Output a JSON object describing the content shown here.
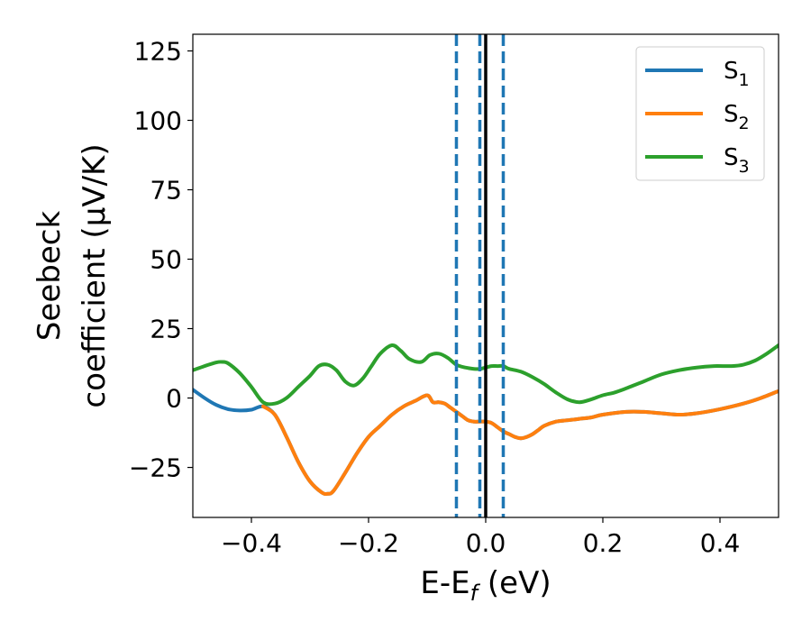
{
  "chart_data": {
    "type": "line",
    "xlabel": {
      "base": "E-E",
      "sub": "f",
      "rest": " (eV)"
    },
    "ylabel": {
      "line1": "Seebeck",
      "line2": "coefficient  (μV/K)"
    },
    "xlim": [
      -0.5,
      0.5
    ],
    "ylim": [
      -43,
      131
    ],
    "xticks": [
      -0.4,
      -0.2,
      0.0,
      0.2,
      0.4
    ],
    "xtick_labels": [
      "−0.4",
      "−0.2",
      "0.0",
      "0.2",
      "0.4"
    ],
    "yticks": [
      -25,
      0,
      25,
      50,
      75,
      100,
      125
    ],
    "ytick_labels": [
      "−25",
      "0",
      "25",
      "50",
      "75",
      "100",
      "125"
    ],
    "legend_position": "top-right",
    "vlines": [
      {
        "x": 0.0,
        "style": "solid",
        "color": "#000000"
      },
      {
        "x": -0.05,
        "style": "dashed",
        "color": "#1f77b4"
      },
      {
        "x": -0.01,
        "style": "dashed",
        "color": "#1f77b4"
      },
      {
        "x": 0.03,
        "style": "dashed",
        "color": "#1f77b4"
      }
    ],
    "series": [
      {
        "name": "S",
        "sub": "1",
        "color": "#1f77b4",
        "x": [
          -0.5,
          -0.48,
          -0.46,
          -0.44,
          -0.42,
          -0.4,
          -0.38,
          -0.36,
          -0.34,
          -0.32,
          -0.3,
          -0.28,
          -0.27,
          -0.26,
          -0.24,
          -0.22,
          -0.2,
          -0.18,
          -0.16,
          -0.14,
          -0.12,
          -0.1,
          -0.09,
          -0.08,
          -0.07,
          -0.06,
          -0.05,
          -0.04,
          -0.03,
          -0.02,
          -0.01,
          0.0,
          0.01,
          0.02,
          0.03,
          0.04,
          0.05,
          0.06,
          0.07,
          0.08,
          0.09,
          0.1,
          0.12,
          0.14,
          0.16,
          0.18,
          0.2,
          0.24,
          0.27,
          0.3,
          0.33,
          0.36,
          0.4,
          0.44,
          0.47,
          0.5
        ],
        "y": [
          3,
          0,
          -2.5,
          -4,
          -4.5,
          -4.2,
          -3,
          -6,
          -14,
          -23,
          -30,
          -34,
          -34.5,
          -33.5,
          -27,
          -20,
          -14,
          -10,
          -6,
          -3,
          -1,
          1,
          -1.5,
          -1.5,
          -2,
          -3.5,
          -5,
          -6.5,
          -8,
          -8.5,
          -8.5,
          -8.5,
          -9,
          -10.5,
          -12,
          -13,
          -14,
          -14.5,
          -14,
          -13,
          -11.5,
          -10,
          -8.5,
          -8,
          -7.5,
          -7,
          -6,
          -5,
          -5,
          -5.5,
          -6,
          -5.5,
          -4,
          -2,
          0,
          2.5
        ]
      },
      {
        "name": "S",
        "sub": "2",
        "color": "#ff7f0e",
        "x": [
          -0.38,
          -0.36,
          -0.34,
          -0.32,
          -0.3,
          -0.28,
          -0.27,
          -0.26,
          -0.24,
          -0.22,
          -0.2,
          -0.18,
          -0.16,
          -0.14,
          -0.12,
          -0.1,
          -0.09,
          -0.08,
          -0.07,
          -0.06,
          -0.05,
          -0.04,
          -0.03,
          -0.02,
          -0.01,
          0.0,
          0.01,
          0.02,
          0.03,
          0.04,
          0.05,
          0.06,
          0.07,
          0.08,
          0.09,
          0.1,
          0.12,
          0.14,
          0.16,
          0.18,
          0.2,
          0.24,
          0.27,
          0.3,
          0.33,
          0.36,
          0.4,
          0.44,
          0.47,
          0.5
        ],
        "y": [
          -3,
          -6,
          -14,
          -23,
          -30,
          -34,
          -34.5,
          -33.5,
          -27,
          -20,
          -14,
          -10,
          -6,
          -3,
          -1,
          1,
          -1.5,
          -1.5,
          -2,
          -3.5,
          -5,
          -6.5,
          -8,
          -8.5,
          -8.5,
          -8.5,
          -9,
          -10.5,
          -12,
          -13,
          -14,
          -14.5,
          -14,
          -13,
          -11.5,
          -10,
          -8.5,
          -8,
          -7.5,
          -7,
          -6,
          -5,
          -5,
          -5.5,
          -6,
          -5.5,
          -4,
          -2,
          0,
          2.5
        ]
      },
      {
        "name": "S",
        "sub": "3",
        "color": "#2ca02c",
        "x": [
          -0.5,
          -0.48,
          -0.46,
          -0.45,
          -0.44,
          -0.42,
          -0.4,
          -0.38,
          -0.36,
          -0.34,
          -0.32,
          -0.3,
          -0.285,
          -0.27,
          -0.255,
          -0.24,
          -0.225,
          -0.21,
          -0.195,
          -0.18,
          -0.16,
          -0.145,
          -0.13,
          -0.11,
          -0.095,
          -0.08,
          -0.065,
          -0.05,
          -0.035,
          -0.02,
          -0.01,
          0.0,
          0.01,
          0.02,
          0.03,
          0.04,
          0.06,
          0.08,
          0.1,
          0.12,
          0.14,
          0.16,
          0.18,
          0.2,
          0.22,
          0.24,
          0.27,
          0.3,
          0.33,
          0.36,
          0.39,
          0.42,
          0.44,
          0.46,
          0.48,
          0.5
        ],
        "y": [
          10,
          11.5,
          12.8,
          13,
          12.5,
          9,
          4,
          -1.5,
          -2,
          0,
          4,
          8,
          11.5,
          12,
          10,
          6,
          4.5,
          7,
          11.5,
          16,
          19,
          17,
          14,
          13,
          15.5,
          16,
          14.5,
          12,
          11,
          10.5,
          10.5,
          11,
          11.5,
          11.5,
          11.5,
          10.5,
          9.5,
          7.5,
          5,
          2,
          -0.5,
          -1.5,
          -0.5,
          1,
          2,
          3.5,
          6,
          8.5,
          10,
          11,
          11.5,
          11.5,
          12,
          13.5,
          16,
          19
        ]
      }
    ]
  }
}
